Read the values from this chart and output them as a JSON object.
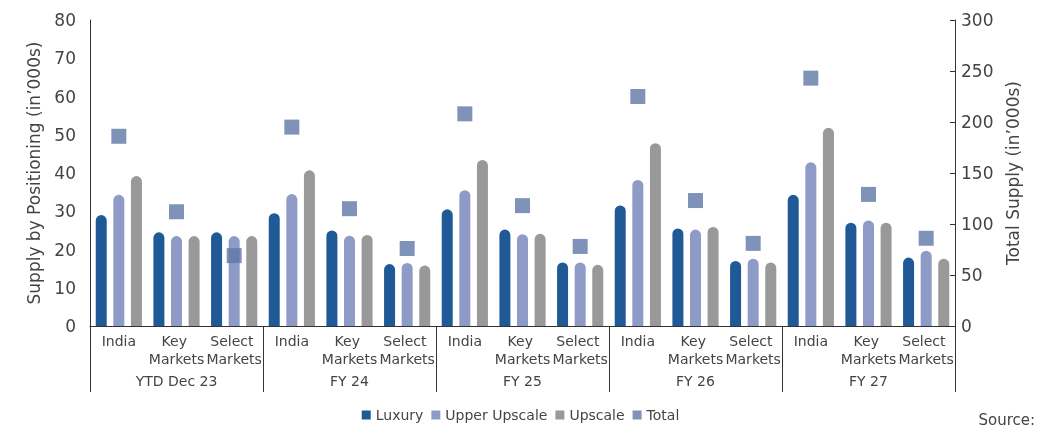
{
  "chart_data": {
    "type": "bar",
    "categories": [
      "India",
      "Key Markets",
      "Select Markets",
      "India",
      "Key Markets",
      "Select Markets",
      "India",
      "Key Markets",
      "Select Markets",
      "India",
      "Key Markets",
      "Select Markets",
      "India",
      "Key Markets",
      "Select Markets"
    ],
    "series": [
      {
        "name": "Luxury",
        "color": "#1f5a96",
        "values": [
          29,
          24.5,
          24.5,
          29.5,
          25,
          16.2,
          30.5,
          25.2,
          16.6,
          31.5,
          25.5,
          17,
          34.3,
          27,
          17.9
        ]
      },
      {
        "name": "Upper Upscale",
        "color": "#8e9bc6",
        "values": [
          34.3,
          23.5,
          23.5,
          34.5,
          23.6,
          16.5,
          35.5,
          24,
          16.6,
          38.2,
          25.2,
          17.6,
          42.8,
          27.6,
          19.7
        ]
      },
      {
        "name": "Upscale",
        "color": "#999999",
        "values": [
          39.2,
          23.5,
          23.5,
          40.7,
          23.8,
          15.8,
          43.4,
          24.1,
          16,
          47.8,
          25.9,
          16.6,
          51.8,
          27,
          17.6
        ]
      },
      {
        "name": "Total",
        "type": "scatter",
        "axis": "y2",
        "color": "#5f78a8",
        "marker": "square",
        "values": [
          186,
          112,
          69,
          195,
          115,
          76,
          208,
          118,
          78,
          225,
          123,
          81,
          243,
          129,
          86
        ]
      }
    ],
    "ylabel": "Supply by Positioning (in’000s)",
    "y2label": "Total Supply (in’000s)",
    "ylim": [
      0,
      80
    ],
    "yticks": [
      0,
      10,
      20,
      30,
      40,
      50,
      60,
      70,
      80
    ],
    "y2lim": [
      0,
      300
    ],
    "y2ticks": [
      0,
      50,
      100,
      150,
      200,
      250,
      300
    ],
    "annotations": [
      "YTD Dec 23",
      "FY 24",
      "FY 25",
      "FY 26",
      "FY 27",
      "Source:"
    ],
    "legend": "bottom",
    "grid": false
  }
}
